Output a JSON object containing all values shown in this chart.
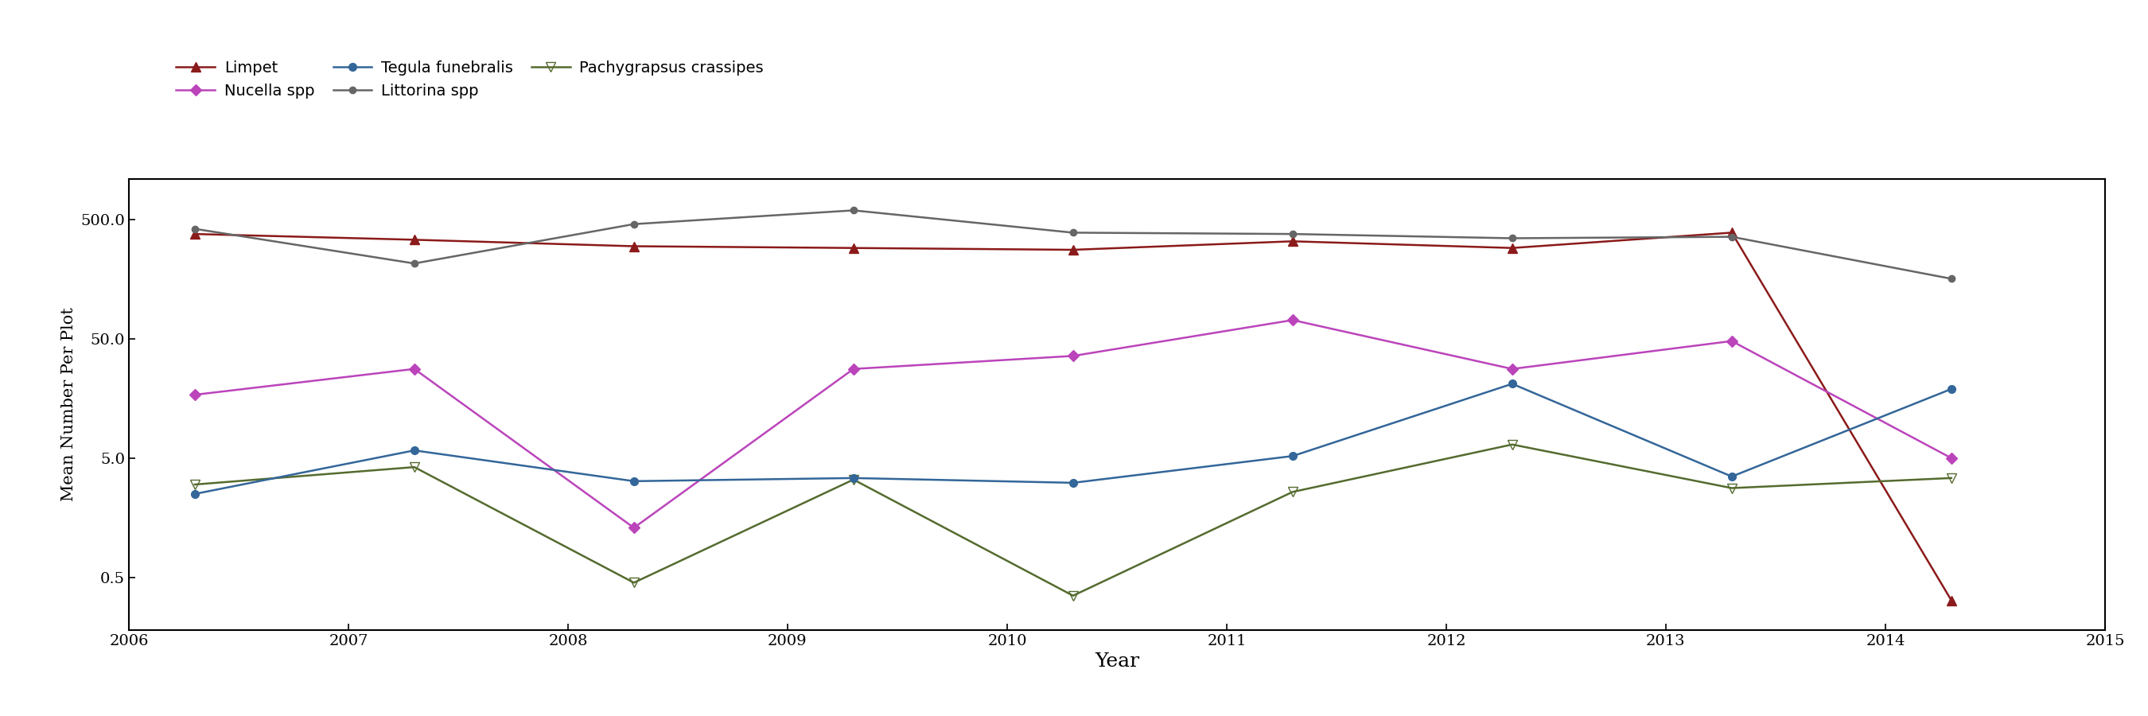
{
  "xlabel": "Year",
  "ylabel": "Mean Number Per Plot",
  "series": [
    {
      "name": "Limpet",
      "color": "#8B1A1A",
      "marker": "^",
      "markersize": 8,
      "mfc": "#8B1A1A",
      "mec": "#8B1A1A",
      "x": [
        2006.3,
        2007.3,
        2008.3,
        2009.3,
        2010.3,
        2011.3,
        2012.3,
        2013.3,
        2014.3
      ],
      "y": [
        380,
        340,
        300,
        290,
        280,
        330,
        290,
        390,
        0.32
      ]
    },
    {
      "name": "Littorina spp",
      "color": "#666666",
      "marker": "o",
      "markersize": 6,
      "mfc": "#666666",
      "mec": "#666666",
      "x": [
        2006.3,
        2007.3,
        2008.3,
        2009.3,
        2010.3,
        2011.3,
        2012.3,
        2013.3,
        2014.3
      ],
      "y": [
        420,
        215,
        460,
        600,
        390,
        380,
        350,
        360,
        160
      ]
    },
    {
      "name": "Nucella spp",
      "color": "#BB44BB",
      "marker": "D",
      "markersize": 7,
      "mfc": "#BB44BB",
      "mec": "#BB44BB",
      "x": [
        2006.3,
        2007.3,
        2008.3,
        2009.3,
        2010.3,
        2011.3,
        2012.3,
        2013.3,
        2014.3
      ],
      "y": [
        17,
        28,
        1.3,
        28,
        36,
        72,
        28,
        48,
        5.0
      ]
    },
    {
      "name": "Pachygrapsus crassipes",
      "color": "#556B2F",
      "marker": "v",
      "markersize": 8,
      "mfc": "none",
      "mec": "#556B2F",
      "x": [
        2006.3,
        2007.3,
        2008.3,
        2009.3,
        2010.3,
        2011.3,
        2012.3,
        2013.3,
        2014.3
      ],
      "y": [
        3.0,
        4.2,
        0.45,
        3.3,
        0.35,
        2.6,
        6.5,
        2.8,
        3.4
      ]
    },
    {
      "name": "Tegula funebralis",
      "color": "#336699",
      "marker": "o",
      "markersize": 7,
      "mfc": "#336699",
      "mec": "#336699",
      "x": [
        2006.3,
        2007.3,
        2008.3,
        2009.3,
        2010.3,
        2011.3,
        2012.3,
        2013.3,
        2014.3
      ],
      "y": [
        2.5,
        5.8,
        3.2,
        3.4,
        3.1,
        5.2,
        21,
        3.5,
        19
      ]
    }
  ],
  "xlim": [
    2006,
    2015
  ],
  "xticks": [
    2006,
    2007,
    2008,
    2009,
    2010,
    2011,
    2012,
    2013,
    2014,
    2015
  ],
  "yticks": [
    0.5,
    5.0,
    50.0,
    500.0
  ],
  "ylim": [
    0.18,
    1100
  ],
  "background_color": "#FFFFFF",
  "figsize": [
    27.0,
    9.0
  ],
  "legend_order": [
    0,
    2,
    4,
    1,
    3
  ],
  "legend_labels": [
    "Limpet",
    "Nucella spp",
    "Tegula funebralis",
    "Littorina spp",
    "Pachygrapsus crassipes"
  ]
}
